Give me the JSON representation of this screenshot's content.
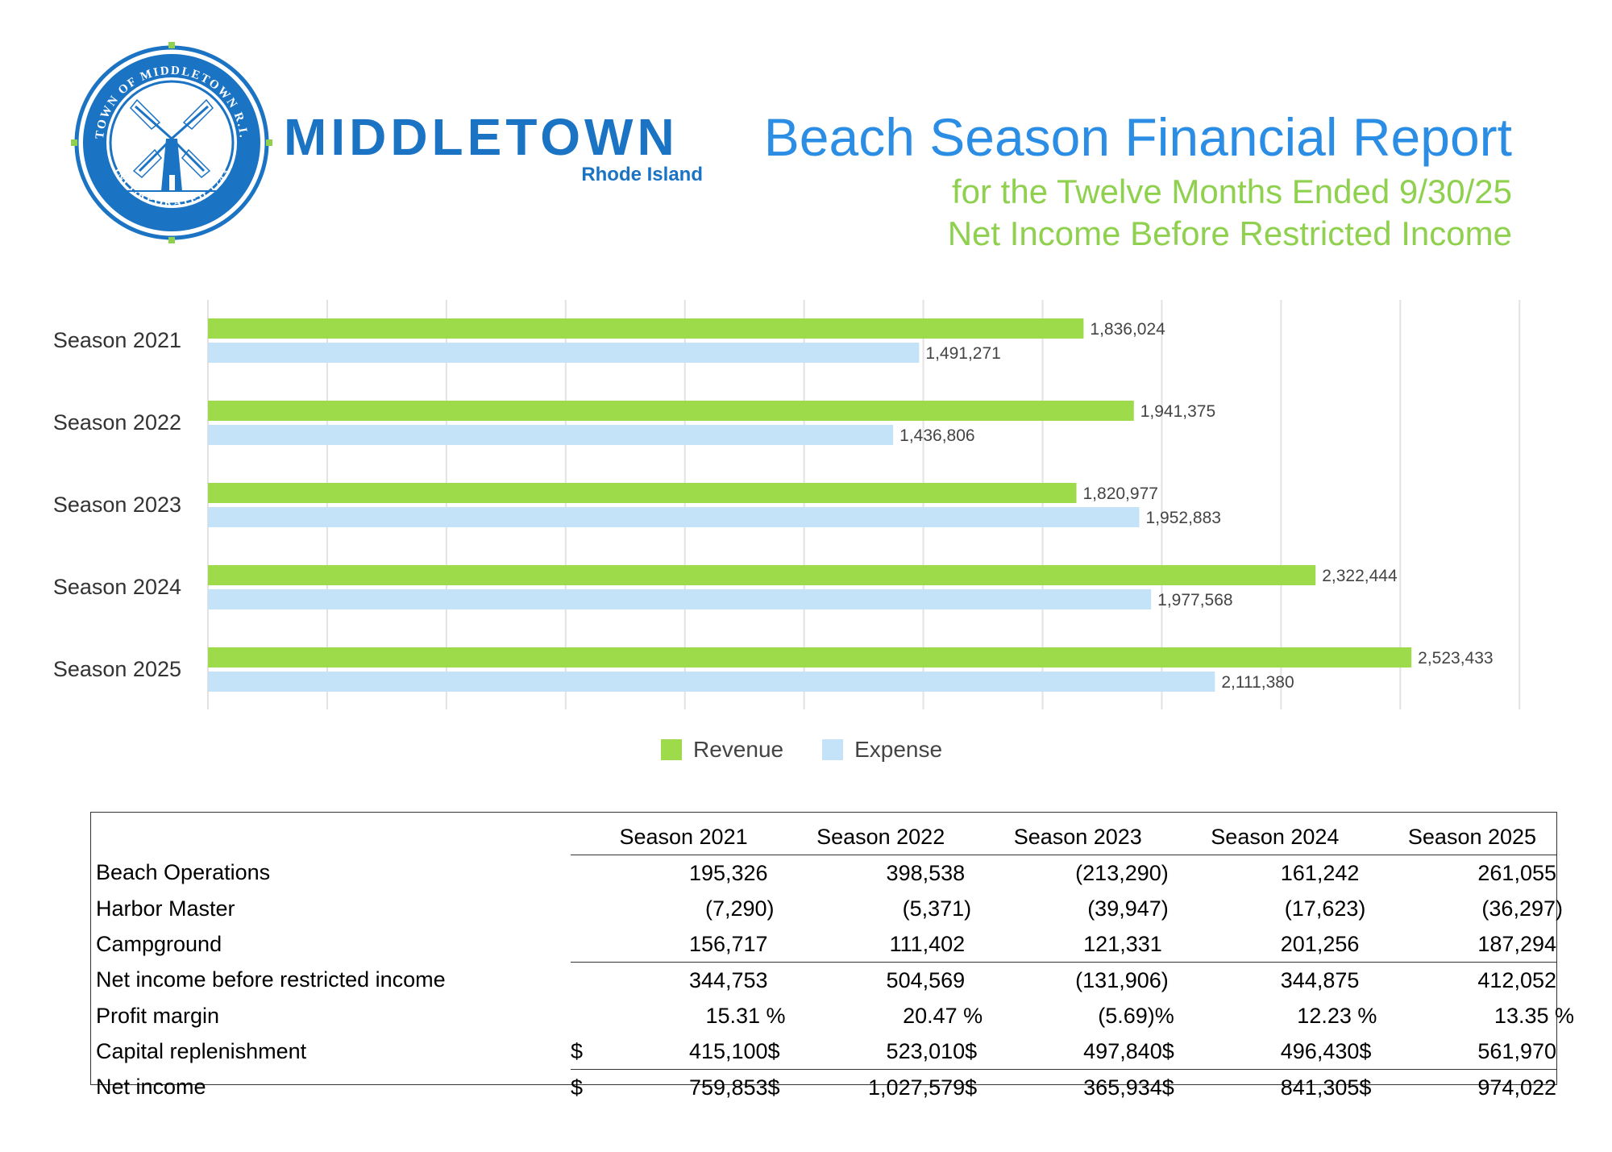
{
  "brand": {
    "seal_top_text": "TOWN OF MIDDLETOWN R.I.",
    "seal_bottom_text": "INCORPORATED 1743",
    "name": "MIDDLETOWN",
    "state": "Rhode Island"
  },
  "header": {
    "title": "Beach Season Financial Report",
    "subtitle_1": "for the Twelve Months Ended 9/30/25",
    "subtitle_2": "Net Income Before Restricted Income"
  },
  "colors": {
    "revenue": "#9edb4a",
    "expense": "#c5e3f8",
    "brand_blue": "#1b73c4",
    "title_blue": "#2b8ee4",
    "title_green": "#8fd14f"
  },
  "chart_data": {
    "type": "bar",
    "orientation": "horizontal",
    "categories": [
      "Season 2021",
      "Season 2022",
      "Season 2023",
      "Season 2024",
      "Season 2025"
    ],
    "series": [
      {
        "name": "Revenue",
        "values": [
          1836024,
          1941375,
          1820977,
          2322444,
          2523433
        ],
        "labels": [
          "1,836,024",
          "1,941,375",
          "1,820,977",
          "2,322,444",
          "2,523,433"
        ]
      },
      {
        "name": "Expense",
        "values": [
          1491271,
          1436806,
          1952883,
          1977568,
          2111380
        ],
        "labels": [
          "1,491,271",
          "1,436,806",
          "1,952,883",
          "1,977,568",
          "2,111,380"
        ]
      }
    ],
    "xlim": [
      0,
      2750000
    ],
    "grid": true,
    "legend": "bottom"
  },
  "legend": {
    "revenue": "Revenue",
    "expense": "Expense"
  },
  "table": {
    "headers": [
      "Season 2021",
      "Season 2022",
      "Season 2023",
      "Season 2024",
      "Season 2025"
    ],
    "rows": [
      {
        "label": "Beach Operations",
        "cells": [
          "195,326",
          "398,538",
          "(213,290)",
          "161,242",
          "261,055"
        ]
      },
      {
        "label": "Harbor Master",
        "cells": [
          "(7,290)",
          "(5,371)",
          "(39,947)",
          "(17,623)",
          "(36,297)"
        ]
      },
      {
        "label": "Campground",
        "cells": [
          "156,717",
          "111,402",
          "121,331",
          "201,256",
          "187,294"
        ]
      },
      {
        "label": "Net income before restricted income",
        "cells": [
          "344,753",
          "504,569",
          "(131,906)",
          "344,875",
          "412,052"
        ]
      },
      {
        "label": "Profit margin",
        "cells": [
          "15.31 %",
          "20.47 %",
          "(5.69)%",
          "12.23 %",
          "13.35 %"
        ]
      },
      {
        "label": "Capital replenishment",
        "currency": "$",
        "cells": [
          "415,100",
          "523,010",
          "497,840",
          "496,430",
          "561,970"
        ]
      },
      {
        "label": "Net income",
        "currency": "$",
        "cells": [
          "759,853",
          "1,027,579",
          "365,934",
          "841,305",
          "974,022"
        ]
      }
    ]
  }
}
